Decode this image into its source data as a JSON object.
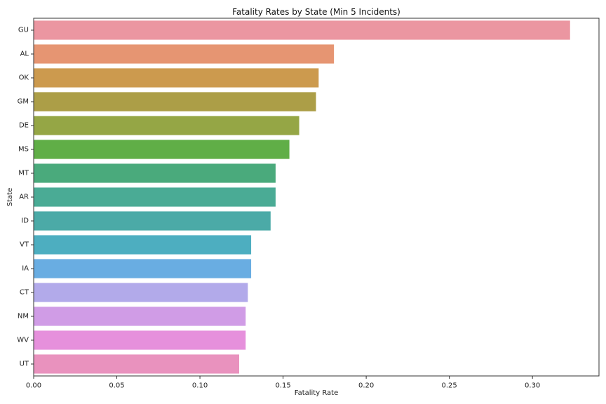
{
  "chart_data": {
    "type": "bar",
    "orientation": "horizontal",
    "title": "Fatality Rates by State (Min 5 Incidents)",
    "xlabel": "Fatality Rate",
    "ylabel": "State",
    "xlim": [
      0,
      0.34
    ],
    "xticks": [
      "0.00",
      "0.05",
      "0.10",
      "0.15",
      "0.20",
      "0.25",
      "0.30"
    ],
    "grid": false,
    "legend": "none",
    "categories": [
      "GU",
      "AL",
      "OK",
      "GM",
      "DE",
      "MS",
      "MT",
      "AR",
      "ID",
      "VT",
      "IA",
      "CT",
      "NM",
      "WV",
      "UT"
    ],
    "values": [
      0.3226,
      0.1806,
      0.1714,
      0.1698,
      0.1597,
      0.1538,
      0.1455,
      0.1455,
      0.1425,
      0.1308,
      0.1308,
      0.1288,
      0.1275,
      0.1275,
      0.1236
    ],
    "colors": [
      "#eb96a1",
      "#e69572",
      "#cc9a4e",
      "#ac9e47",
      "#95a645",
      "#60ae47",
      "#4aaa7c",
      "#4aab95",
      "#4baaa7",
      "#4daec0",
      "#69ade2",
      "#b2aaea",
      "#d09ce6",
      "#e690dc",
      "#e992be"
    ]
  }
}
